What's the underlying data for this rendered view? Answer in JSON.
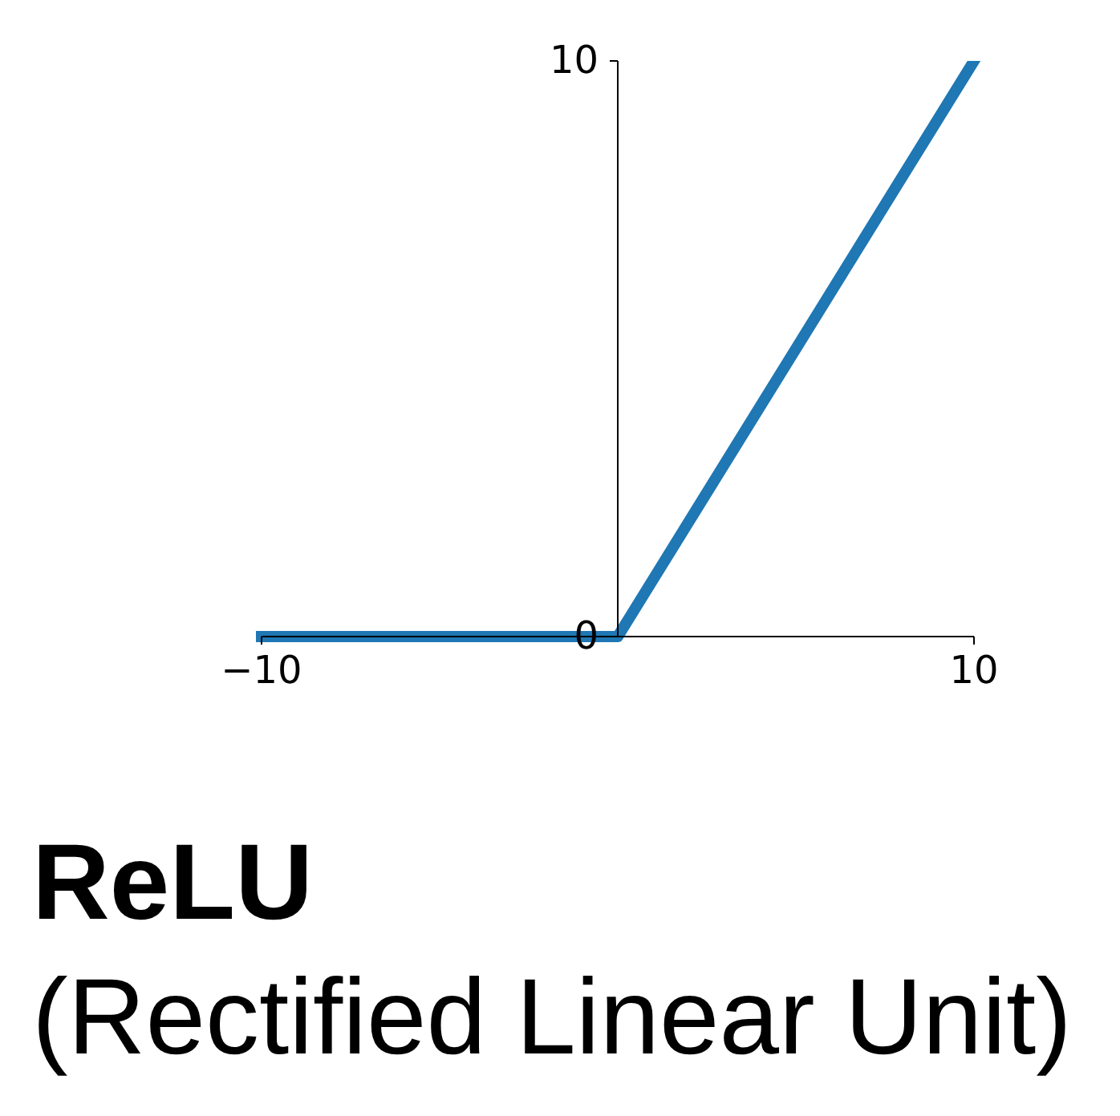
{
  "chart_data": {
    "type": "line",
    "title": "ReLU",
    "subtitle": "(Rectified Linear Unit)",
    "x": [
      -10,
      0,
      10
    ],
    "series": [
      {
        "color": "#1f77b4",
        "values": [
          0,
          0,
          10
        ]
      }
    ],
    "xlim": [
      -10,
      10
    ],
    "ylim": [
      0,
      10
    ],
    "xticks": [
      {
        "value": -10,
        "label": "−10"
      },
      10
    ],
    "yticks": [
      0,
      10
    ],
    "line_style": "solid"
  }
}
